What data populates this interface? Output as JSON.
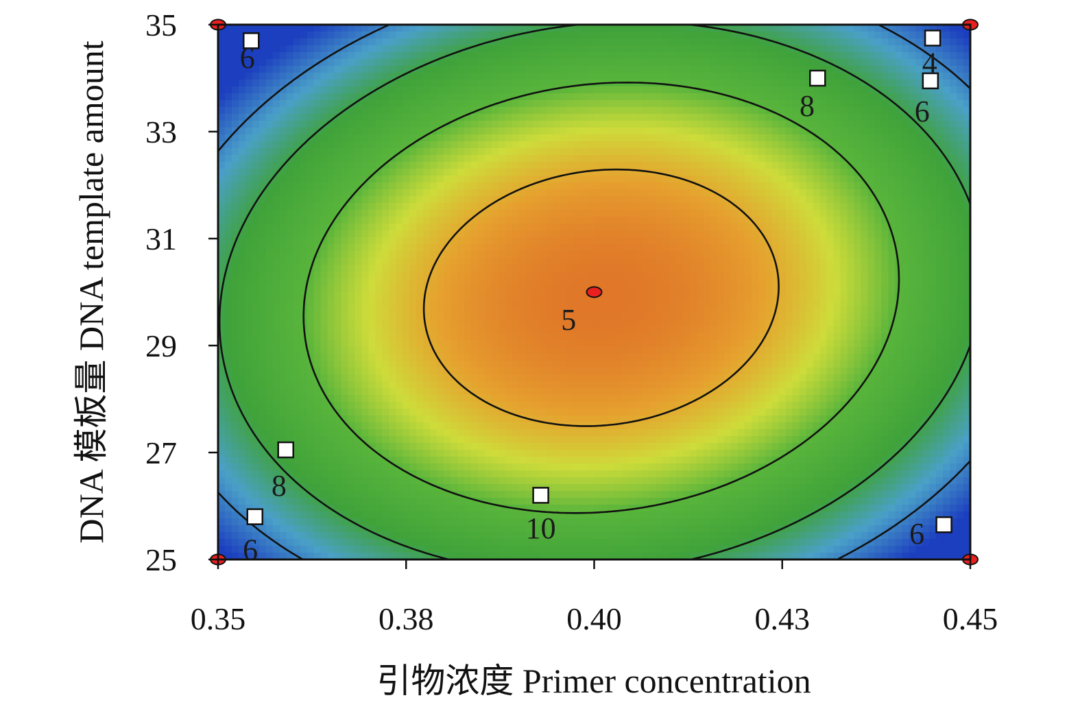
{
  "chart_data": {
    "type": "heatmap",
    "subtype": "contour",
    "xlabel": "引物浓度 Primer concentration",
    "ylabel": "DNA 模板量 DNA template amount",
    "xlim": [
      0.35,
      0.45
    ],
    "ylim": [
      25,
      35
    ],
    "x_ticks": [
      {
        "value": 0.35,
        "label": "0.35"
      },
      {
        "value": 0.375,
        "label": "0.38"
      },
      {
        "value": 0.4,
        "label": "0.40"
      },
      {
        "value": 0.425,
        "label": "0.43"
      },
      {
        "value": 0.45,
        "label": "0.45"
      }
    ],
    "y_ticks": [
      {
        "value": 25,
        "label": "25"
      },
      {
        "value": 27,
        "label": "27"
      },
      {
        "value": 29,
        "label": "29"
      },
      {
        "value": 31,
        "label": "31"
      },
      {
        "value": 33,
        "label": "33"
      },
      {
        "value": 35,
        "label": "35"
      }
    ],
    "colormap": [
      "#1f3fbf",
      "#4aa0c8",
      "#3fa23a",
      "#55b83a",
      "#cfdc3a",
      "#e6a82e",
      "#e07828"
    ],
    "contour_levels": [
      4,
      6,
      8,
      10
    ],
    "contour_labels": [
      {
        "text": "6",
        "x": 0.3539,
        "y": 34.4
      },
      {
        "text": "4",
        "x": 0.4446,
        "y": 34.3
      },
      {
        "text": "8",
        "x": 0.4283,
        "y": 33.5
      },
      {
        "text": "6",
        "x": 0.4436,
        "y": 33.4
      },
      {
        "text": "5",
        "x": 0.3966,
        "y": 29.5
      },
      {
        "text": "8",
        "x": 0.3581,
        "y": 26.4
      },
      {
        "text": "10",
        "x": 0.3929,
        "y": 25.6
      },
      {
        "text": "6",
        "x": 0.3543,
        "y": 25.2
      },
      {
        "text": "6",
        "x": 0.4429,
        "y": 25.5
      }
    ],
    "label_markers": [
      {
        "x": 0.3544,
        "y": 34.7
      },
      {
        "x": 0.445,
        "y": 34.75
      },
      {
        "x": 0.4297,
        "y": 34.0
      },
      {
        "x": 0.4447,
        "y": 33.95
      },
      {
        "x": 0.359,
        "y": 27.05
      },
      {
        "x": 0.3929,
        "y": 26.2
      },
      {
        "x": 0.3549,
        "y": 25.8
      },
      {
        "x": 0.4465,
        "y": 25.65
      }
    ],
    "design_points": [
      {
        "x": 0.35,
        "y": 35
      },
      {
        "x": 0.45,
        "y": 35
      },
      {
        "x": 0.35,
        "y": 25
      },
      {
        "x": 0.45,
        "y": 25
      },
      {
        "x": 0.4,
        "y": 30
      }
    ],
    "grid": false
  }
}
